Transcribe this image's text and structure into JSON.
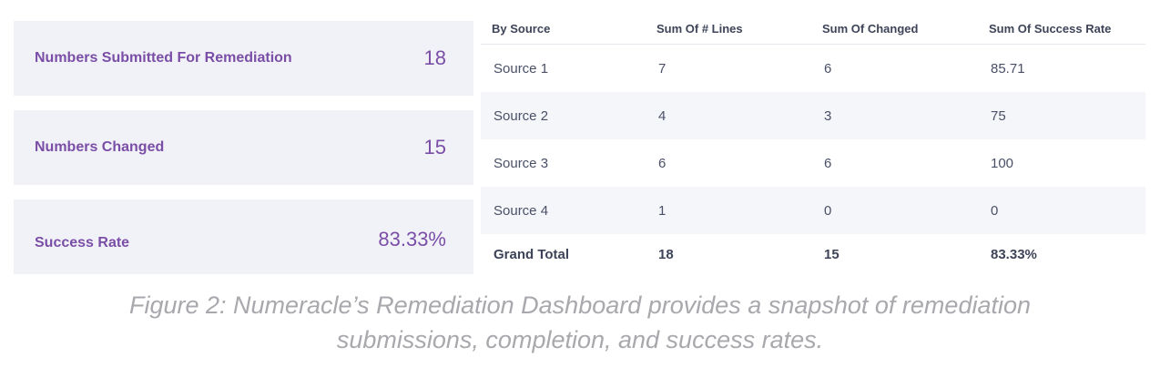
{
  "kpis": [
    {
      "label": "Numbers Submitted For Remediation",
      "value": "18"
    },
    {
      "label": "Numbers Changed",
      "value": "15"
    },
    {
      "label": "Success Rate",
      "value": "83.33%"
    }
  ],
  "table": {
    "headers": [
      "By Source",
      "Sum Of # Lines",
      "Sum Of Changed",
      "Sum Of Success Rate"
    ],
    "rows": [
      [
        "Source 1",
        "7",
        "6",
        "85.71"
      ],
      [
        "Source 2",
        "4",
        "3",
        "75"
      ],
      [
        "Source 3",
        "6",
        "6",
        "100"
      ],
      [
        "Source 4",
        "1",
        "0",
        "0"
      ]
    ],
    "total": [
      "Grand Total",
      "18",
      "15",
      "83.33%"
    ]
  },
  "caption": {
    "line1": "Figure 2: Numeracle’s Remediation Dashboard provides a snapshot of remediation",
    "line2": "submissions, completion, and success rates."
  },
  "colors": {
    "accent": "#7a4ea7",
    "card_bg": "#f1f2f7",
    "row_alt_bg": "#f5f6fa",
    "caption": "#a8a8ad"
  }
}
